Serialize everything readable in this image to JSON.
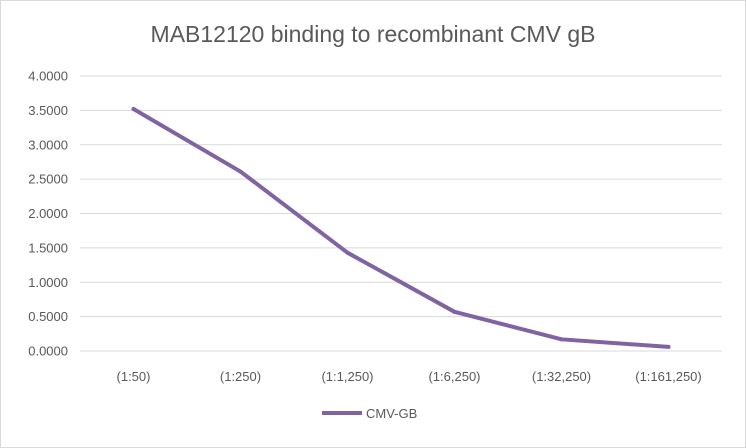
{
  "chart_data": {
    "type": "line",
    "title": "MAB12120 binding to recombinant CMV gB",
    "xlabel": "",
    "ylabel": "",
    "categories": [
      "(1:50)",
      "(1:250)",
      "(1:1,250)",
      "(1:6,250)",
      "(1:32,250)",
      "(1:161,250)"
    ],
    "series": [
      {
        "name": "CMV-GB",
        "values": [
          3.52,
          2.61,
          1.43,
          0.57,
          0.17,
          0.06
        ],
        "color": "#8064a2"
      }
    ],
    "ylim": [
      0,
      4
    ],
    "yticks": [
      "0.0000",
      "0.5000",
      "1.0000",
      "1.5000",
      "2.0000",
      "2.5000",
      "3.0000",
      "3.5000",
      "4.0000"
    ],
    "grid": true,
    "legend": "bottom"
  }
}
